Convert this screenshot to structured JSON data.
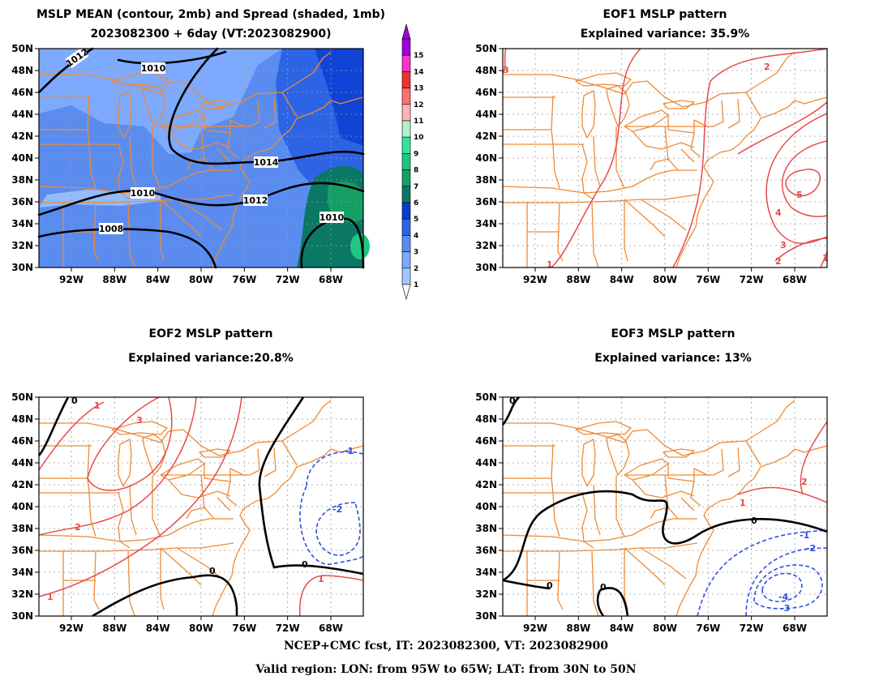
{
  "panels": [
    {
      "title_line1": "MSLP MEAN (contour, 2mb) and Spread (shaded, 1mb)",
      "title_line2": "2023082300 + 6day (VT:2023082900)"
    },
    {
      "title_line1": "EOF1 MSLP pattern",
      "title_line2": "Explained variance: 35.9%"
    },
    {
      "title_line1": "EOF2 MSLP pattern",
      "title_line2": "Explained variance:20.8%"
    },
    {
      "title_line1": "EOF3 MSLP pattern",
      "title_line2": "Explained variance: 13%"
    }
  ],
  "axes": {
    "lat_labels": [
      "50N",
      "48N",
      "46N",
      "44N",
      "42N",
      "40N",
      "38N",
      "36N",
      "34N",
      "32N",
      "30N"
    ],
    "lon_labels": [
      "92W",
      "88W",
      "84W",
      "80W",
      "76W",
      "72W",
      "68W"
    ]
  },
  "colorbar": {
    "levels": [
      "1",
      "2",
      "3",
      "4",
      "5",
      "6",
      "7",
      "8",
      "9",
      "10",
      "11",
      "12",
      "13",
      "14",
      "15"
    ],
    "colors": [
      "#a0c8ff",
      "#7daaff",
      "#5a8cf0",
      "#2d64e6",
      "#0a3cd2",
      "#0a7864",
      "#14a064",
      "#1ec882",
      "#32e6a0",
      "#b4f0c8",
      "#ffb4b4",
      "#ff7070",
      "#f03232",
      "#ff32c8",
      "#a000dc"
    ]
  },
  "mean_labels": [
    "1012",
    "1010",
    "1014",
    "1010",
    "1012",
    "1010",
    "1008"
  ],
  "eof1_labels": [
    "2",
    "5",
    "4",
    "3",
    "2",
    "1",
    "1"
  ],
  "eof2_labels": [
    "0",
    "1",
    "3",
    "2",
    "1",
    "-1",
    "-2",
    "0",
    "0",
    "1"
  ],
  "eof3_labels": [
    "0",
    "2",
    "1",
    "0",
    "-1",
    "-2",
    "-4",
    "-3",
    "0",
    "0"
  ],
  "footer": {
    "line1": "NCEP+CMC fcst, IT: 2023082300, VT: 2023082900",
    "line2": "Valid region: LON: from 95W to 65W; LAT: from 30N to 50N"
  }
}
